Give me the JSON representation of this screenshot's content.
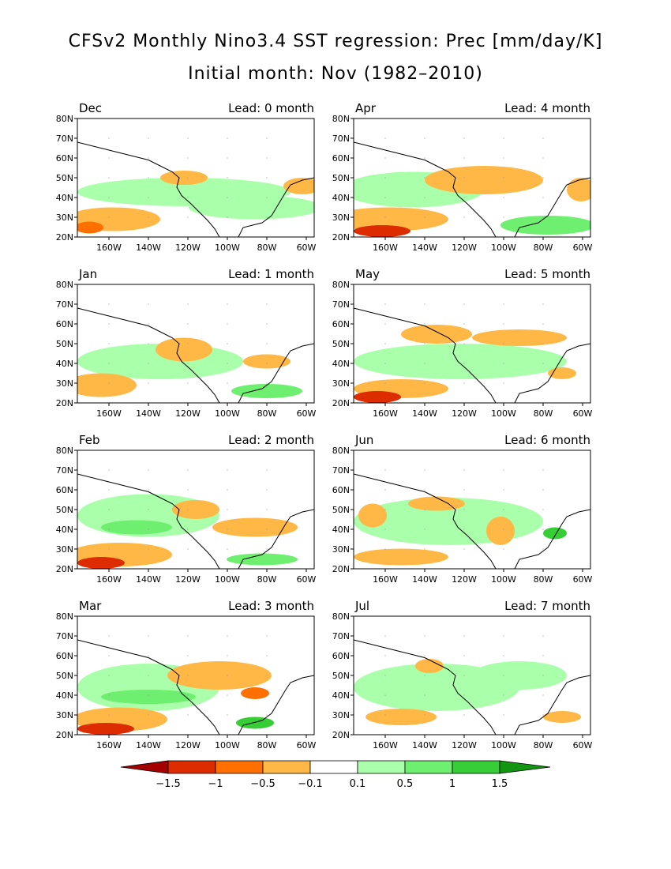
{
  "header": {
    "title": "CFSv2 Monthly Nino3.4 SST regression: Prec [mm/day/K]",
    "subtitle": "Initial month: Nov (1982–2010)"
  },
  "axes": {
    "lat_labels": [
      "80N",
      "70N",
      "60N",
      "50N",
      "40N",
      "30N",
      "20N"
    ],
    "lon_labels": [
      "160W",
      "140W",
      "120W",
      "100W",
      "80W",
      "60W"
    ]
  },
  "panels": [
    {
      "month": "Dec",
      "lead": "Lead: 0 month"
    },
    {
      "month": "Apr",
      "lead": "Lead: 4 month"
    },
    {
      "month": "Jan",
      "lead": "Lead: 1 month"
    },
    {
      "month": "May",
      "lead": "Lead: 5 month"
    },
    {
      "month": "Feb",
      "lead": "Lead: 2 month"
    },
    {
      "month": "Jun",
      "lead": "Lead: 6 month"
    },
    {
      "month": "Mar",
      "lead": "Lead: 3 month"
    },
    {
      "month": "Jul",
      "lead": "Lead: 7 month"
    }
  ],
  "colorbar": {
    "colors": [
      "#a50000",
      "#dd2c00",
      "#ff7000",
      "#ffb845",
      "#ffffff",
      "#aaffaa",
      "#6fef6f",
      "#36cd36",
      "#129612"
    ],
    "labels": [
      "−1.5",
      "−1",
      "−0.5",
      "−0.1",
      "0.1",
      "0.5",
      "1",
      "1.5"
    ]
  }
}
